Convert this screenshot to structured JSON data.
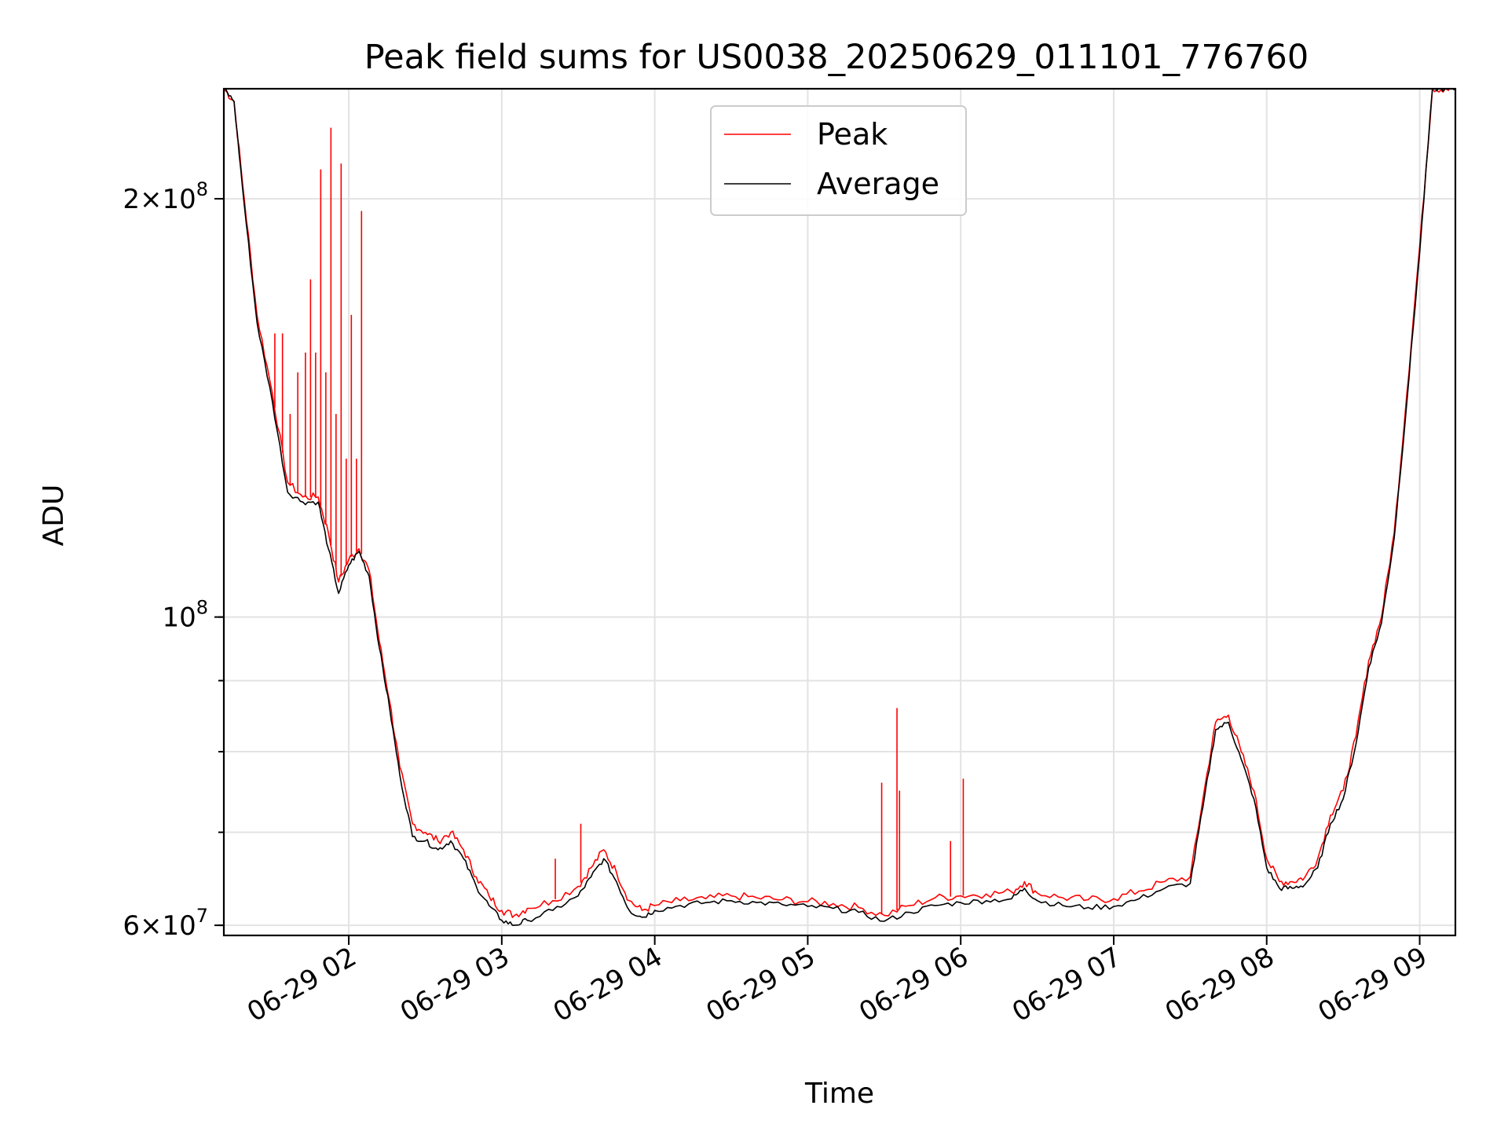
{
  "chart_data": {
    "type": "line",
    "title": "Peak field sums for US0038_20250629_011101_776760",
    "xlabel": "Time",
    "ylabel": "ADU",
    "yscale": "log",
    "ylim": [
      59000000,
      240000000
    ],
    "xlim": [
      "06-29 01:11",
      "06-29 09:14"
    ],
    "grid": true,
    "legend_position": "top-center",
    "x_tick_labels": [
      "06-29 02",
      "06-29 03",
      "06-29 04",
      "06-29 05",
      "06-29 06",
      "06-29 07",
      "06-29 08",
      "06-29 09"
    ],
    "y_tick_labels": [
      {
        "value": 60000000,
        "base": "6",
        "exp": "7"
      },
      {
        "value": 100000000,
        "base": "10",
        "exp": "8"
      },
      {
        "value": 200000000,
        "base": "2",
        "exp": "8"
      }
    ],
    "x": [
      "06-29 01:11",
      "06-29 01:15",
      "06-29 01:19",
      "06-29 01:24",
      "06-29 01:30",
      "06-29 01:36",
      "06-29 01:42",
      "06-29 01:48",
      "06-29 01:52",
      "06-29 01:56",
      "06-29 02:00",
      "06-29 02:04",
      "06-29 02:08",
      "06-29 02:12",
      "06-29 02:16",
      "06-29 02:20",
      "06-29 02:25",
      "06-29 02:30",
      "06-29 02:35",
      "06-29 02:40",
      "06-29 02:45",
      "06-29 02:50",
      "06-29 02:55",
      "06-29 03:00",
      "06-29 03:05",
      "06-29 03:10",
      "06-29 03:20",
      "06-29 03:30",
      "06-29 03:35",
      "06-29 03:40",
      "06-29 03:45",
      "06-29 03:50",
      "06-29 03:55",
      "06-29 04:00",
      "06-29 04:10",
      "06-29 04:20",
      "06-29 04:30",
      "06-29 04:40",
      "06-29 04:50",
      "06-29 05:00",
      "06-29 05:10",
      "06-29 05:20",
      "06-29 05:30",
      "06-29 05:40",
      "06-29 05:50",
      "06-29 06:00",
      "06-29 06:10",
      "06-29 06:20",
      "06-29 06:25",
      "06-29 06:30",
      "06-29 06:40",
      "06-29 06:50",
      "06-29 07:00",
      "06-29 07:10",
      "06-29 07:20",
      "06-29 07:30",
      "06-29 07:35",
      "06-29 07:40",
      "06-29 07:45",
      "06-29 07:50",
      "06-29 07:55",
      "06-29 08:00",
      "06-29 08:05",
      "06-29 08:10",
      "06-29 08:15",
      "06-29 08:20",
      "06-29 08:25",
      "06-29 08:30",
      "06-29 08:35",
      "06-29 08:40",
      "06-29 08:45",
      "06-29 08:50",
      "06-29 08:55",
      "06-29 09:00",
      "06-29 09:05",
      "06-29 09:10",
      "06-29 09:14"
    ],
    "series": [
      {
        "name": "Peak",
        "color": "#ff0000",
        "values": [
          240000000,
          235000000,
          200000000,
          165000000,
          145000000,
          125000000,
          122000000,
          122000000,
          115000000,
          106000000,
          110000000,
          112000000,
          108000000,
          96000000,
          87000000,
          78000000,
          71000000,
          70000000,
          69000000,
          70000000,
          68000000,
          65000000,
          63000000,
          61500000,
          61000000,
          61700000,
          62500000,
          64000000,
          66000000,
          68000000,
          65500000,
          62500000,
          61500000,
          62000000,
          62500000,
          62700000,
          63000000,
          62800000,
          62600000,
          62400000,
          62200000,
          61800000,
          61000000,
          62000000,
          62800000,
          63000000,
          63200000,
          63400000,
          64500000,
          63300000,
          62800000,
          62600000,
          62700000,
          63500000,
          64500000,
          65000000,
          74000000,
          84000000,
          85000000,
          80000000,
          75000000,
          67000000,
          64500000,
          64500000,
          65000000,
          67000000,
          72000000,
          75000000,
          82000000,
          93000000,
          100000000,
          115000000,
          145000000,
          185000000,
          240000000,
          240000000,
          240000000
        ]
      },
      {
        "name": "Average",
        "color": "#000000",
        "values": [
          240000000,
          235000000,
          198000000,
          163000000,
          143000000,
          123000000,
          121000000,
          121000000,
          112000000,
          104000000,
          109000000,
          111500000,
          107000000,
          95000000,
          86000000,
          77000000,
          69500000,
          69000000,
          68000000,
          69000000,
          67000000,
          64000000,
          62000000,
          60500000,
          60000000,
          60500000,
          61500000,
          63000000,
          65000000,
          67000000,
          64500000,
          61500000,
          60800000,
          61500000,
          62000000,
          62300000,
          62500000,
          62300000,
          62100000,
          61900000,
          61700000,
          61300000,
          60400000,
          61300000,
          62000000,
          62300000,
          62500000,
          62700000,
          63800000,
          62500000,
          62000000,
          61800000,
          61900000,
          62700000,
          63800000,
          64300000,
          73000000,
          83000000,
          84000000,
          79000000,
          74000000,
          66000000,
          63800000,
          63800000,
          64200000,
          66000000,
          71000000,
          74000000,
          81000000,
          92000000,
          99000000,
          114000000,
          143000000,
          183000000,
          240000000,
          240000000,
          240000000
        ]
      }
    ],
    "spikes": [
      {
        "x": "06-29 01:31",
        "y": 160000000
      },
      {
        "x": "06-29 01:34",
        "y": 160000000
      },
      {
        "x": "06-29 01:37",
        "y": 140000000
      },
      {
        "x": "06-29 01:40",
        "y": 150000000
      },
      {
        "x": "06-29 01:43",
        "y": 155000000
      },
      {
        "x": "06-29 01:45",
        "y": 175000000
      },
      {
        "x": "06-29 01:47",
        "y": 155000000
      },
      {
        "x": "06-29 01:49",
        "y": 210000000
      },
      {
        "x": "06-29 01:51",
        "y": 150000000
      },
      {
        "x": "06-29 01:53",
        "y": 225000000
      },
      {
        "x": "06-29 01:55",
        "y": 140000000
      },
      {
        "x": "06-29 01:57",
        "y": 212000000
      },
      {
        "x": "06-29 01:59",
        "y": 130000000
      },
      {
        "x": "06-29 02:01",
        "y": 165000000
      },
      {
        "x": "06-29 02:03",
        "y": 130000000
      },
      {
        "x": "06-29 02:05",
        "y": 196000000
      },
      {
        "x": "06-29 03:21",
        "y": 67000000
      },
      {
        "x": "06-29 03:31",
        "y": 71000000
      },
      {
        "x": "06-29 05:29",
        "y": 76000000
      },
      {
        "x": "06-29 05:35",
        "y": 86000000
      },
      {
        "x": "06-29 05:36",
        "y": 75000000
      },
      {
        "x": "06-29 05:56",
        "y": 69000000
      },
      {
        "x": "06-29 06:01",
        "y": 76500000
      }
    ]
  }
}
